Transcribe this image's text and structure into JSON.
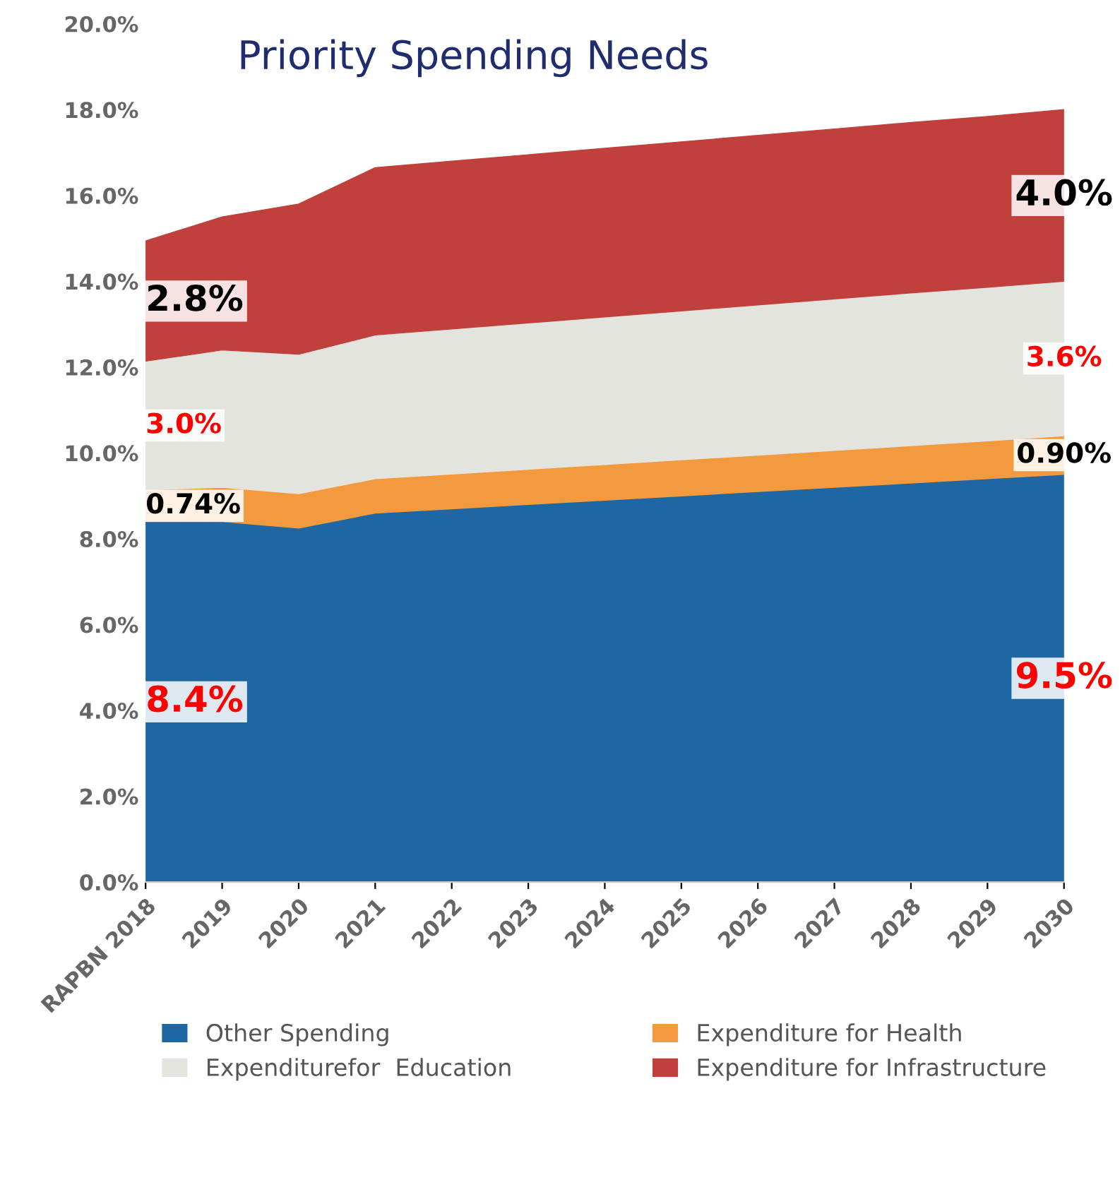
{
  "chart_data": {
    "type": "area",
    "stacked": true,
    "title": "Priority Spending Needs",
    "categories": [
      "RAPBN 2018",
      "2019",
      "2020",
      "2021",
      "2022",
      "2023",
      "2024",
      "2025",
      "2026",
      "2027",
      "2028",
      "2029",
      "2030"
    ],
    "series": [
      {
        "name": "Other Spending",
        "color": "#1f67a3",
        "values": [
          8.4,
          8.4,
          8.25,
          8.6,
          8.7,
          8.8,
          8.9,
          9.0,
          9.1,
          9.2,
          9.3,
          9.4,
          9.5
        ]
      },
      {
        "name": "Expenditure for Health",
        "color": "#f39a3e",
        "values": [
          0.74,
          0.8,
          0.8,
          0.8,
          0.81,
          0.82,
          0.83,
          0.84,
          0.85,
          0.86,
          0.87,
          0.88,
          0.9
        ]
      },
      {
        "name": "Expenditurefor  Education",
        "color": "#e4e4df",
        "values": [
          3.0,
          3.2,
          3.25,
          3.35,
          3.38,
          3.41,
          3.44,
          3.47,
          3.5,
          3.53,
          3.56,
          3.58,
          3.6
        ]
      },
      {
        "name": "Expenditure for Infrastructure",
        "color": "#c0403c",
        "values": [
          2.8,
          3.1,
          3.5,
          3.9,
          3.91,
          3.92,
          3.93,
          3.94,
          3.95,
          3.96,
          3.97,
          3.98,
          4.0
        ]
      }
    ],
    "ylim": [
      0,
      20
    ],
    "yticks": [
      {
        "value": 0,
        "label": "0.0%"
      },
      {
        "value": 2,
        "label": "2.0%"
      },
      {
        "value": 4,
        "label": "4.0%"
      },
      {
        "value": 6,
        "label": "6.0%"
      },
      {
        "value": 8,
        "label": "8.0%"
      },
      {
        "value": 10,
        "label": "10.0%"
      },
      {
        "value": 12,
        "label": "12.0%"
      },
      {
        "value": 14,
        "label": "14.0%"
      },
      {
        "value": 16,
        "label": "16.0%"
      },
      {
        "value": 18,
        "label": "18.0%"
      },
      {
        "value": 20,
        "label": "20.0%"
      }
    ],
    "annotations": [
      {
        "text": "8.4%",
        "x": "RAPBN 2018",
        "y": 4.2
      },
      {
        "text": "0.74%",
        "x": "RAPBN 2018",
        "y": 8.77
      },
      {
        "text": "3.0%",
        "x": "RAPBN 2018",
        "y": 10.64
      },
      {
        "text": "2.8%",
        "x": "RAPBN 2018",
        "y": 13.54
      },
      {
        "text": "9.5%",
        "x": "2030",
        "y": 4.75
      },
      {
        "text": "0.90%",
        "x": "2030",
        "y": 9.95
      },
      {
        "text": "3.6%",
        "x": "2030",
        "y": 12.2
      },
      {
        "text": "4.0%",
        "x": "2030",
        "y": 16.0
      }
    ],
    "legend": "bottom",
    "grid": false
  }
}
